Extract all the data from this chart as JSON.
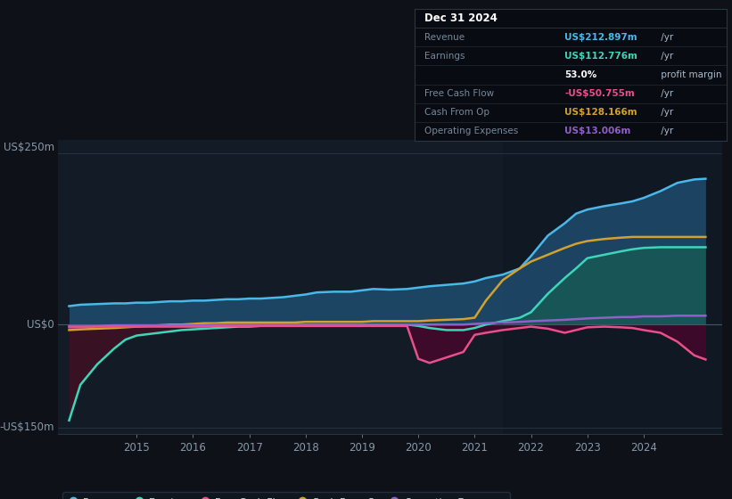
{
  "bg_color": "#0e1117",
  "plot_bg_color": "#131b27",
  "ylim": [
    -160,
    270
  ],
  "xlim": [
    2013.6,
    2025.4
  ],
  "xticks": [
    2015,
    2016,
    2017,
    2018,
    2019,
    2020,
    2021,
    2022,
    2023,
    2024
  ],
  "grid_lines": [
    250,
    0,
    -150
  ],
  "ylabel_250": "US$250m",
  "ylabel_0": "US$0",
  "ylabel_150": "-US$150m",
  "colors": {
    "revenue": "#4ab8e8",
    "earnings": "#3dd6b8",
    "free_cash_flow": "#e8508a",
    "cash_from_op": "#d4a030",
    "operating_expenses": "#9060c8"
  },
  "fill_revenue": "#1e4a6a",
  "fill_earnings_pos": "#1a6060",
  "fill_earnings_neg": "#3a1020",
  "fill_fcf_neg": "#5a0030",
  "dark_overlay_x": 2021.5,
  "dark_overlay_color": "#0d1520",
  "legend_items": [
    {
      "label": "Revenue",
      "color": "#4ab8e8"
    },
    {
      "label": "Earnings",
      "color": "#3dd6b8"
    },
    {
      "label": "Free Cash Flow",
      "color": "#e8508a"
    },
    {
      "label": "Cash From Op",
      "color": "#d4a030"
    },
    {
      "label": "Operating Expenses",
      "color": "#9060c8"
    }
  ],
  "info_box_title": "Dec 31 2024",
  "info_rows": [
    {
      "label": "Revenue",
      "value": "US$212.897m",
      "unit": " /yr",
      "color": "#4ab8e8"
    },
    {
      "label": "Earnings",
      "value": "US$112.776m",
      "unit": " /yr",
      "color": "#3dd6b8"
    },
    {
      "label": "",
      "value": "53.0%",
      "unit": " profit margin",
      "color": "#ffffff"
    },
    {
      "label": "Free Cash Flow",
      "value": "-US$50.755m",
      "unit": " /yr",
      "color": "#e8508a"
    },
    {
      "label": "Cash From Op",
      "value": "US$128.166m",
      "unit": " /yr",
      "color": "#d4a030"
    },
    {
      "label": "Operating Expenses",
      "value": "US$13.006m",
      "unit": " /yr",
      "color": "#9060c8"
    }
  ],
  "years": [
    2013.8,
    2014.0,
    2014.3,
    2014.6,
    2014.8,
    2015.0,
    2015.2,
    2015.4,
    2015.6,
    2015.8,
    2016.0,
    2016.2,
    2016.4,
    2016.6,
    2016.8,
    2017.0,
    2017.2,
    2017.4,
    2017.6,
    2017.8,
    2018.0,
    2018.2,
    2018.5,
    2018.8,
    2019.0,
    2019.2,
    2019.5,
    2019.8,
    2020.0,
    2020.2,
    2020.5,
    2020.8,
    2021.0,
    2021.2,
    2021.5,
    2021.8,
    2022.0,
    2022.3,
    2022.6,
    2022.8,
    2023.0,
    2023.3,
    2023.6,
    2023.8,
    2024.0,
    2024.3,
    2024.6,
    2024.9,
    2025.1
  ],
  "revenue": [
    27,
    29,
    30,
    31,
    31,
    32,
    32,
    33,
    34,
    34,
    35,
    35,
    36,
    37,
    37,
    38,
    38,
    39,
    40,
    42,
    44,
    47,
    48,
    48,
    50,
    52,
    51,
    52,
    54,
    56,
    58,
    60,
    63,
    68,
    73,
    82,
    100,
    130,
    148,
    162,
    168,
    173,
    177,
    180,
    185,
    195,
    207,
    212,
    213
  ],
  "earnings": [
    -140,
    -88,
    -58,
    -35,
    -22,
    -16,
    -14,
    -12,
    -10,
    -8,
    -7,
    -6,
    -5,
    -4,
    -3,
    -3,
    -2,
    -2,
    -2,
    -2,
    -1,
    -1,
    0,
    0,
    0,
    0,
    0,
    0,
    -2,
    -5,
    -8,
    -8,
    -5,
    0,
    5,
    10,
    18,
    45,
    68,
    82,
    97,
    102,
    107,
    110,
    112,
    113,
    113,
    113,
    113
  ],
  "free_cash_flow": [
    -4,
    -4,
    -3,
    -3,
    -3,
    -3,
    -3,
    -3,
    -3,
    -3,
    -3,
    -3,
    -2,
    -2,
    -2,
    -2,
    -2,
    -2,
    -2,
    -2,
    -2,
    -2,
    -2,
    -2,
    -2,
    -2,
    -2,
    -2,
    -50,
    -56,
    -48,
    -40,
    -15,
    -12,
    -8,
    -5,
    -3,
    -6,
    -12,
    -8,
    -4,
    -3,
    -4,
    -5,
    -8,
    -12,
    -25,
    -45,
    -51
  ],
  "cash_from_op": [
    -8,
    -7,
    -6,
    -5,
    -4,
    -3,
    -2,
    -1,
    0,
    0,
    1,
    2,
    2,
    3,
    3,
    3,
    3,
    3,
    3,
    3,
    4,
    4,
    4,
    4,
    4,
    5,
    5,
    5,
    5,
    6,
    7,
    8,
    10,
    35,
    65,
    82,
    92,
    102,
    112,
    118,
    122,
    125,
    127,
    128,
    128,
    128,
    128,
    128,
    128
  ],
  "operating_expenses": [
    -2,
    -2,
    -2,
    -1,
    -1,
    -1,
    -1,
    -1,
    -1,
    -1,
    -1,
    -1,
    0,
    0,
    0,
    0,
    0,
    0,
    0,
    0,
    0,
    0,
    0,
    0,
    0,
    0,
    0,
    0,
    0,
    0,
    0,
    0,
    1,
    2,
    3,
    4,
    5,
    6,
    7,
    8,
    9,
    10,
    11,
    11,
    12,
    12,
    13,
    13,
    13
  ]
}
